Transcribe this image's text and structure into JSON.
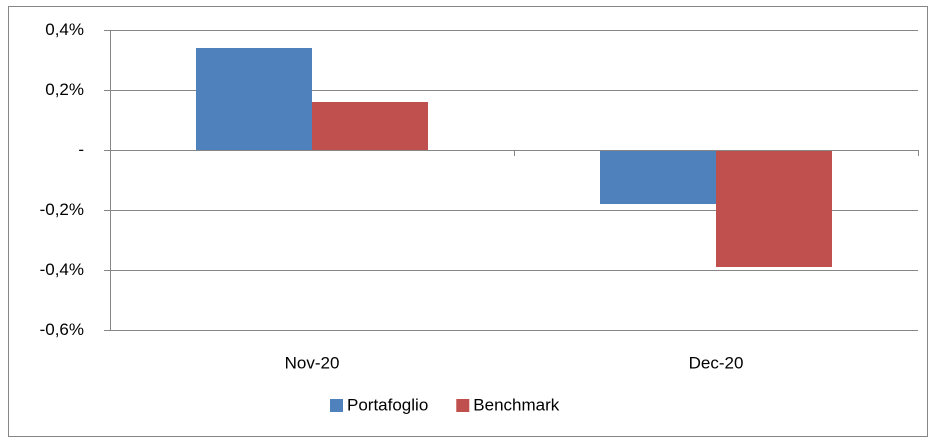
{
  "chart_data": {
    "type": "bar",
    "categories": [
      "Nov-20",
      "Dec-20"
    ],
    "series": [
      {
        "name": "Portafoglio",
        "color": "#4f81bd",
        "values": [
          0.34,
          -0.18
        ]
      },
      {
        "name": "Benchmark",
        "color": "#c0504d",
        "values": [
          0.16,
          -0.39
        ]
      }
    ],
    "ylim": [
      -0.6,
      0.4
    ],
    "yticks": [
      {
        "value": 0.4,
        "label": "0,4%"
      },
      {
        "value": 0.2,
        "label": "0,2%"
      },
      {
        "value": 0,
        "label": "-"
      },
      {
        "value": -0.2,
        "label": "-0,2%"
      },
      {
        "value": -0.4,
        "label": "-0,4%"
      },
      {
        "value": -0.6,
        "label": "-0,6%"
      }
    ],
    "grid": true,
    "legend": "bottom"
  }
}
